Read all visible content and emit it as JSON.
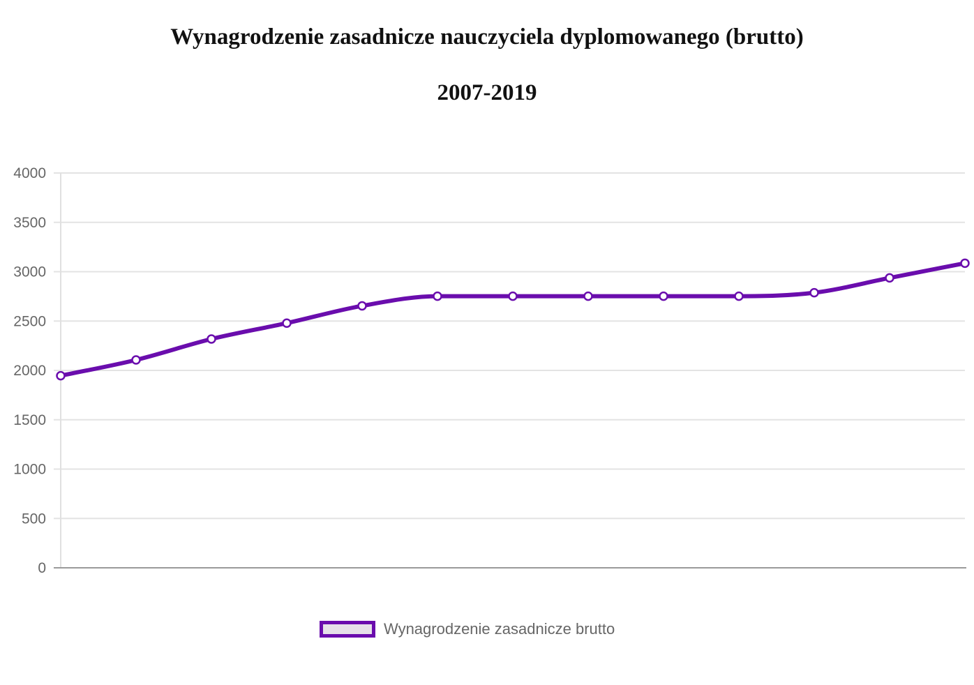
{
  "chart_data": {
    "type": "line",
    "title": "Wynagrodzenie zasadnicze nauczyciela dyplomowanego (brutto)",
    "subtitle": "2007-2019",
    "xlabel": "",
    "ylabel": "",
    "categories": [
      "",
      "",
      "",
      "",
      "",
      "",
      "",
      "",
      "",
      "",
      "",
      "",
      ""
    ],
    "series": [
      {
        "name": "Wynagrodzenie zasadnicze brutto",
        "color": "#6a0dad",
        "values": [
          1946,
          2106,
          2318,
          2479,
          2654,
          2752,
          2752,
          2752,
          2752,
          2752,
          2787,
          2937,
          3086
        ]
      }
    ],
    "ylim": [
      0,
      4000
    ],
    "yticks": [
      "0",
      "500",
      "1000",
      "1500",
      "2000",
      "2500",
      "3000",
      "3500",
      "4000"
    ],
    "grid": true,
    "legend_position": "bottom",
    "legend_fill": "#e6e1e9"
  }
}
